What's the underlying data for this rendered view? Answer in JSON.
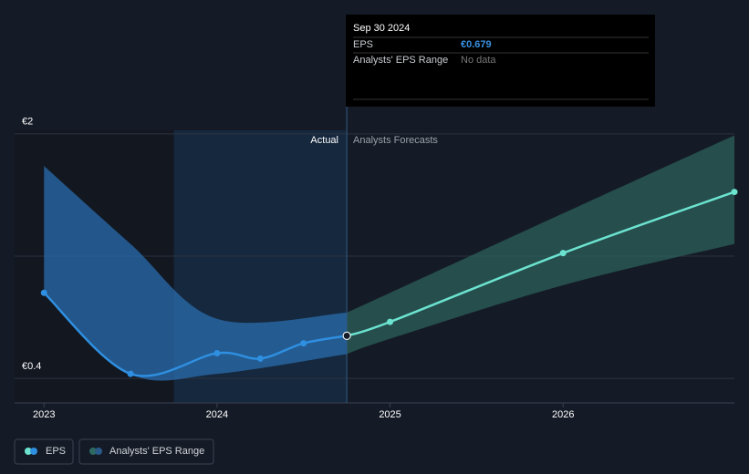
{
  "chart_data": {
    "type": "line",
    "yticks": [
      {
        "value": 2,
        "label": "€2"
      },
      {
        "value": 0.4,
        "label": "€0.4"
      }
    ],
    "ygrid": [
      2,
      1.2,
      0.4
    ],
    "ylim": [
      0.24,
      2.16
    ],
    "xlim": [
      2022.83,
      2026.99
    ],
    "xticks": [
      2023,
      2024,
      2025,
      2026
    ],
    "divider_x": 2024.75,
    "highlight_start_x": 2023.75,
    "actual_label": "Actual",
    "forecast_label": "Analysts Forecasts",
    "series": [
      {
        "name": "EPS",
        "color": "#2f8fe0",
        "x": [
          2023,
          2023.5,
          2024,
          2024.25,
          2024.5,
          2024.75
        ],
        "values": [
          0.96,
          0.43,
          0.565,
          0.53,
          0.63,
          0.679
        ]
      }
    ],
    "forecast": {
      "color": "#6ce3cf",
      "x": [
        2024.75,
        2025,
        2026,
        2026.99
      ],
      "values": [
        0.679,
        0.77,
        1.22,
        1.62
      ]
    },
    "range": {
      "name": "Analysts' EPS Range",
      "color": "#2a6cae",
      "forecast_color": "#2e6a62",
      "x": [
        2023,
        2023.5,
        2024,
        2024.75,
        2025,
        2026,
        2026.99
      ],
      "low": [
        0.96,
        0.43,
        0.43,
        0.56,
        0.66,
        1.01,
        1.28
      ],
      "high": [
        1.79,
        1.28,
        0.79,
        0.83,
        0.96,
        1.48,
        1.99
      ]
    },
    "tooltip": {
      "date": "Sep 30 2024",
      "rows": [
        {
          "label": "EPS",
          "value": "€0.679"
        },
        {
          "label": "Analysts' EPS Range",
          "value": "No data"
        }
      ]
    }
  }
}
